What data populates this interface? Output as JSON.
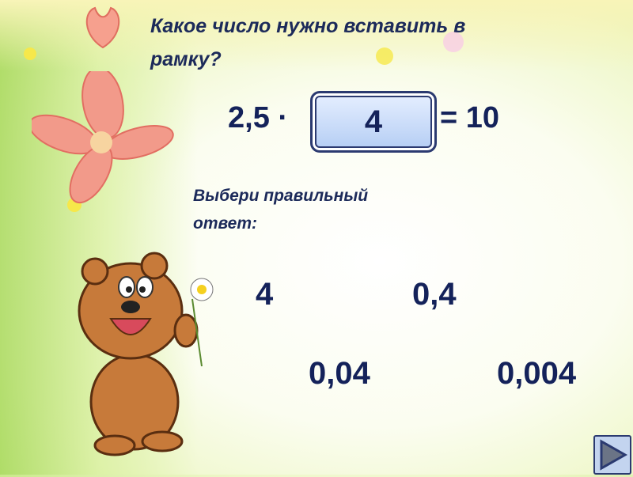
{
  "question": {
    "line1": "Какое число нужно вставить в",
    "line2": "рамку?"
  },
  "equation": {
    "left": "2,5 ·",
    "box_value": "4",
    "right": "= 10"
  },
  "prompt": {
    "line1": "Выбери правильный",
    "line2": "ответ:"
  },
  "options": [
    "4",
    "0,4",
    "0,04",
    "0,004"
  ],
  "nav": {
    "next_icon": "play-triangle-icon"
  },
  "colors": {
    "text": "#14225a",
    "box_fill": "#b4cdf4",
    "background_green": "#c9e98a"
  }
}
